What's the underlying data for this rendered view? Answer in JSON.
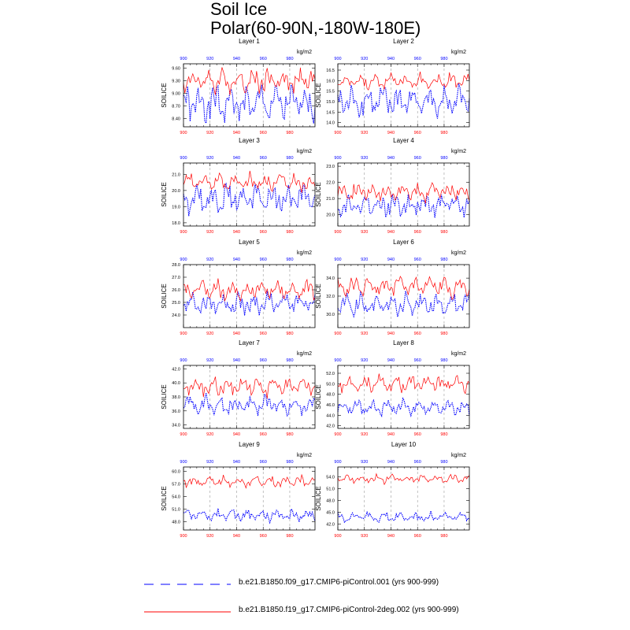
{
  "title": "Soil Ice",
  "subtitle": "Polar(60-90N,-180W-180E)",
  "units": "kg/m2",
  "ylabel": "SOILICE",
  "legend": [
    {
      "label": "b.e21.B1850.f09_g17.CMIP6-piControl.001 (yrs 900-999)",
      "color": "#0000ff",
      "style": "dashed"
    },
    {
      "label": "b.e21.B1850.f19_g17.CMIP6-piControl-2deg.002 (yrs 900-999)",
      "color": "#ff0000",
      "style": "solid"
    }
  ],
  "colors": {
    "blue": "#0000ff",
    "red": "#ff0000"
  },
  "chart_data": [
    {
      "type": "line",
      "title": "Layer 1",
      "xlim": [
        900,
        999
      ],
      "ylim": [
        8.2,
        9.7
      ],
      "xticks": [
        "900",
        "920",
        "940",
        "960",
        "980"
      ],
      "yticks": [
        "8.40",
        "8.70",
        "9.00",
        "9.30",
        "9.60"
      ],
      "series": [
        {
          "name": "b.e21.B1850.f09_g17.CMIP6-piControl.001",
          "base": 8.75,
          "amp": 0.28,
          "min": 8.28,
          "max": 9.2
        },
        {
          "name": "b.e21.B1850.f19_g17.CMIP6-piControl-2deg.002",
          "base": 9.3,
          "amp": 0.18,
          "min": 8.85,
          "max": 9.62
        }
      ]
    },
    {
      "type": "line",
      "title": "Layer 2",
      "xlim": [
        900,
        999
      ],
      "ylim": [
        13.8,
        16.8
      ],
      "xticks": [
        "900",
        "920",
        "940",
        "960",
        "980"
      ],
      "yticks": [
        "14.0",
        "14.5",
        "15.0",
        "15.5",
        "16.0",
        "16.5"
      ],
      "series": [
        {
          "name": "b.e21.B1850.f09_g17.CMIP6-piControl.001",
          "base": 15.0,
          "amp": 0.45,
          "min": 14.1,
          "max": 15.9
        },
        {
          "name": "b.e21.B1850.f19_g17.CMIP6-piControl-2deg.002",
          "base": 15.95,
          "amp": 0.25,
          "min": 15.2,
          "max": 16.6
        }
      ]
    },
    {
      "type": "line",
      "title": "Layer 3",
      "xlim": [
        900,
        999
      ],
      "ylim": [
        17.8,
        21.7
      ],
      "xticks": [
        "900",
        "920",
        "940",
        "960",
        "980"
      ],
      "yticks": [
        "18.0",
        "19.0",
        "20.0",
        "21.0"
      ],
      "series": [
        {
          "name": "b.e21.B1850.f09_g17.CMIP6-piControl.001",
          "base": 19.5,
          "amp": 0.55,
          "min": 18.1,
          "max": 20.5
        },
        {
          "name": "b.e21.B1850.f19_g17.CMIP6-piControl-2deg.002",
          "base": 20.5,
          "amp": 0.35,
          "min": 19.5,
          "max": 21.4
        }
      ]
    },
    {
      "type": "line",
      "title": "Layer 4",
      "xlim": [
        900,
        999
      ],
      "ylim": [
        19.3,
        23.2
      ],
      "xticks": [
        "900",
        "920",
        "940",
        "960",
        "980"
      ],
      "yticks": [
        "20.0",
        "21.0",
        "22.0",
        "23.0"
      ],
      "series": [
        {
          "name": "b.e21.B1850.f09_g17.CMIP6-piControl.001",
          "base": 20.6,
          "amp": 0.45,
          "min": 19.5,
          "max": 21.3
        },
        {
          "name": "b.e21.B1850.f19_g17.CMIP6-piControl-2deg.002",
          "base": 21.4,
          "amp": 0.35,
          "min": 20.7,
          "max": 22.9
        }
      ]
    },
    {
      "type": "line",
      "title": "Layer 5",
      "xlim": [
        900,
        999
      ],
      "ylim": [
        23.0,
        28.0
      ],
      "xticks": [
        "900",
        "920",
        "940",
        "960",
        "980"
      ],
      "yticks": [
        "24.0",
        "25.0",
        "26.0",
        "27.0",
        "28.0"
      ],
      "series": [
        {
          "name": "b.e21.B1850.f09_g17.CMIP6-piControl.001",
          "base": 24.9,
          "amp": 0.55,
          "min": 23.6,
          "max": 26.2
        },
        {
          "name": "b.e21.B1850.f19_g17.CMIP6-piControl-2deg.002",
          "base": 26.0,
          "amp": 0.5,
          "min": 24.8,
          "max": 27.9
        }
      ]
    },
    {
      "type": "line",
      "title": "Layer 6",
      "xlim": [
        900,
        999
      ],
      "ylim": [
        28.5,
        35.5
      ],
      "xticks": [
        "900",
        "920",
        "940",
        "960",
        "980"
      ],
      "yticks": [
        "30.0",
        "32.0",
        "34.0"
      ],
      "series": [
        {
          "name": "b.e21.B1850.f09_g17.CMIP6-piControl.001",
          "base": 31.0,
          "amp": 0.8,
          "min": 29.4,
          "max": 33.2
        },
        {
          "name": "b.e21.B1850.f19_g17.CMIP6-piControl-2deg.002",
          "base": 33.0,
          "amp": 0.7,
          "min": 31.5,
          "max": 35.0
        }
      ]
    },
    {
      "type": "line",
      "title": "Layer 7",
      "xlim": [
        900,
        999
      ],
      "ylim": [
        33.5,
        42.5
      ],
      "xticks": [
        "900",
        "920",
        "940",
        "960",
        "980"
      ],
      "yticks": [
        "34.0",
        "36.0",
        "38.0",
        "40.0",
        "42.0"
      ],
      "series": [
        {
          "name": "b.e21.B1850.f09_g17.CMIP6-piControl.001",
          "base": 36.8,
          "amp": 0.9,
          "min": 35.3,
          "max": 40.5
        },
        {
          "name": "b.e21.B1850.f19_g17.CMIP6-piControl-2deg.002",
          "base": 39.5,
          "amp": 0.9,
          "min": 36.8,
          "max": 41.8
        }
      ]
    },
    {
      "type": "line",
      "title": "Layer 8",
      "xlim": [
        900,
        999
      ],
      "ylim": [
        41.5,
        53.5
      ],
      "xticks": [
        "900",
        "920",
        "940",
        "960",
        "980"
      ],
      "yticks": [
        "42.0",
        "44.0",
        "46.0",
        "48.0",
        "50.0",
        "52.0"
      ],
      "series": [
        {
          "name": "b.e21.B1850.f09_g17.CMIP6-piControl.001",
          "base": 45.5,
          "amp": 0.9,
          "min": 43.5,
          "max": 47.5
        },
        {
          "name": "b.e21.B1850.f19_g17.CMIP6-piControl-2deg.002",
          "base": 50.0,
          "amp": 1.0,
          "min": 47.0,
          "max": 52.5
        }
      ]
    },
    {
      "type": "line",
      "title": "Layer 9",
      "xlim": [
        900,
        999
      ],
      "ylim": [
        46.0,
        61.0
      ],
      "xticks": [
        "900",
        "920",
        "940",
        "960",
        "980"
      ],
      "yticks": [
        "48.0",
        "51.0",
        "54.0",
        "57.0",
        "60.0"
      ],
      "series": [
        {
          "name": "b.e21.B1850.f09_g17.CMIP6-piControl.001",
          "base": 49.5,
          "amp": 0.9,
          "min": 47.5,
          "max": 52.5
        },
        {
          "name": "b.e21.B1850.f19_g17.CMIP6-piControl-2deg.002",
          "base": 57.5,
          "amp": 0.9,
          "min": 55.0,
          "max": 60.0
        }
      ]
    },
    {
      "type": "line",
      "title": "Layer 10",
      "xlim": [
        900,
        999
      ],
      "ylim": [
        40.5,
        56.5
      ],
      "xticks": [
        "900",
        "920",
        "940",
        "960",
        "980"
      ],
      "yticks": [
        "42.0",
        "45.0",
        "48.0",
        "51.0",
        "54.0"
      ],
      "series": [
        {
          "name": "b.e21.B1850.f09_g17.CMIP6-piControl.001",
          "base": 43.8,
          "amp": 0.8,
          "min": 42.0,
          "max": 46.5
        },
        {
          "name": "b.e21.B1850.f19_g17.CMIP6-piControl-2deg.002",
          "base": 53.5,
          "amp": 0.7,
          "min": 51.5,
          "max": 55.5
        }
      ]
    }
  ]
}
